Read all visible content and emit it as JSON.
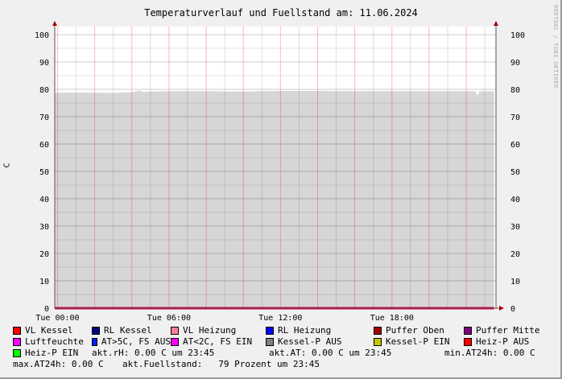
{
  "chart_data": {
    "type": "area",
    "title": "Temperaturverlauf und Fuellstand am: 11.06.2024",
    "ylabel": "C",
    "watermark": "RRDTOOL / TOBI OETIKER",
    "ylim": [
      0,
      103
    ],
    "yticks": [
      0,
      10,
      20,
      30,
      40,
      50,
      60,
      70,
      80,
      90,
      100
    ],
    "xlim_hours": [
      -0.15,
      23.6
    ],
    "xticks": [
      {
        "h": 0,
        "label": "Tue 00:00"
      },
      {
        "h": 6,
        "label": "Tue 06:00"
      },
      {
        "h": 12,
        "label": "Tue 12:00"
      },
      {
        "h": 18,
        "label": "Tue 18:00"
      }
    ],
    "grid": true,
    "series": [
      {
        "name": "akt.Fuellstand",
        "color": "#d6d6d6",
        "x": [
          -0.15,
          1,
          2,
          3,
          4,
          4.4,
          4.6,
          5,
          6,
          8,
          10,
          12,
          14,
          16,
          18,
          20,
          22,
          22.5,
          22.6,
          22.7,
          23,
          23.5
        ],
        "y": [
          78.8,
          78.8,
          78.8,
          78.7,
          78.9,
          79.6,
          79.0,
          79.2,
          79.3,
          79.3,
          79.2,
          79.4,
          79.4,
          79.3,
          79.3,
          79.3,
          79.3,
          79.3,
          77.5,
          79.2,
          79.3,
          79.3
        ]
      },
      {
        "name": "zero-lines",
        "color": "#e00050",
        "x": [
          -0.15,
          23.5
        ],
        "y": [
          0,
          0
        ]
      }
    ]
  },
  "legend": [
    [
      {
        "label": "VL Kessel",
        "color": "#ff0000"
      },
      {
        "label": "RL Kessel",
        "color": "#000080"
      },
      {
        "label": "VL Heizung",
        "color": "#ff8098"
      },
      {
        "label": "RL Heizung",
        "color": "#0000ff"
      },
      {
        "label": "Puffer Oben",
        "color": "#a00000"
      },
      {
        "label": "Puffer Mitte",
        "color": "#800080"
      }
    ],
    [
      {
        "label": "Luftfeuchte",
        "color": "#ff00ff"
      },
      {
        "label": "AT>5C, FS AUS",
        "color": "#0020ff"
      },
      {
        "label": "AT<2C, FS EIN",
        "color": "#ff00ff"
      },
      {
        "label": "Kessel-P AUS",
        "color": "#808080"
      },
      {
        "label": "Kessel-P EIN",
        "color": "#c8c800"
      },
      {
        "label": "Heiz-P AUS",
        "color": "#ff0000"
      }
    ],
    [
      {
        "label": "Heiz-P EIN",
        "color": "#00ff00"
      }
    ]
  ],
  "stats": {
    "akt_rh": "akt.rH: 0.00 C um 23:45",
    "akt_at": "akt.AT: 0.00 C um 23:45",
    "min_at": "min.AT24h: 0.00 C",
    "max_at": "max.AT24h: 0.00 C",
    "fuellstand": "akt.Fuellstand:   79 Prozent um 23:45"
  }
}
